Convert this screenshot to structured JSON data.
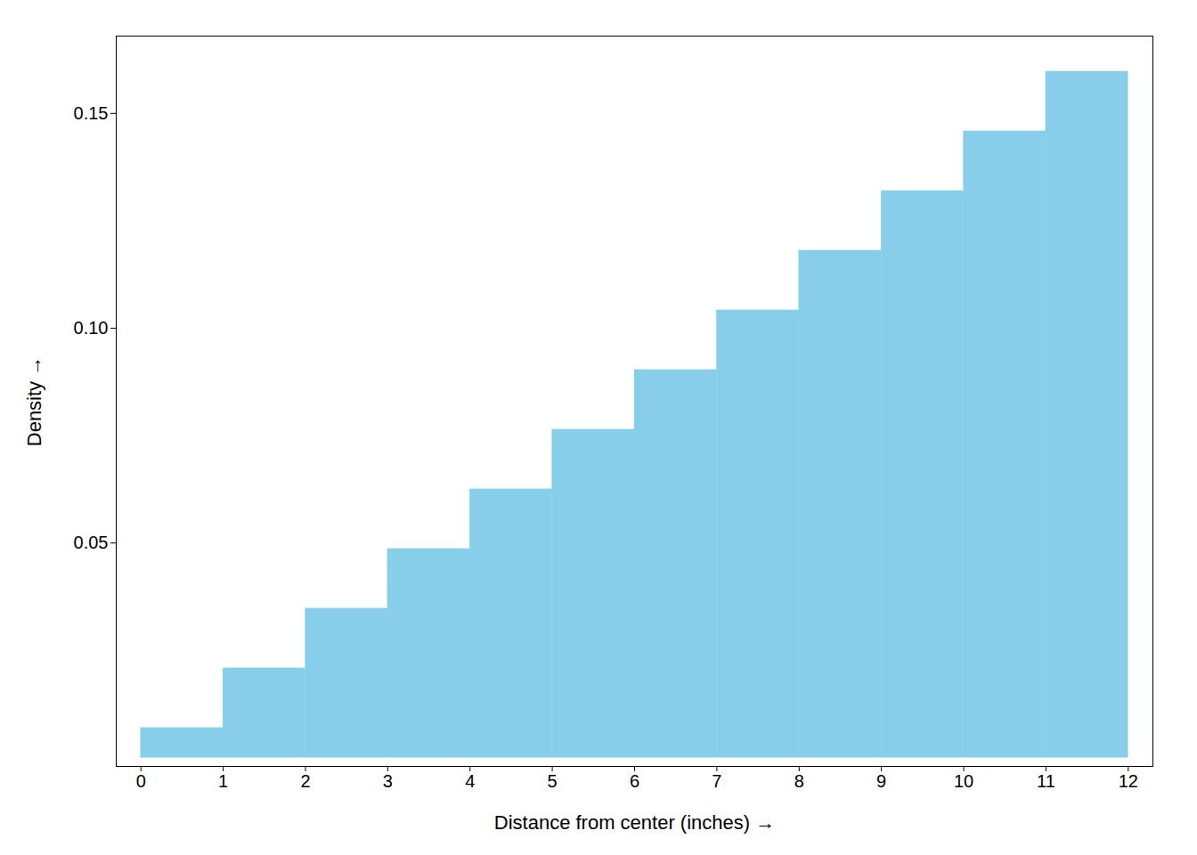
{
  "chart_data": {
    "type": "histogram",
    "bins": [
      0,
      1,
      2,
      3,
      4,
      5,
      6,
      7,
      8,
      9,
      10,
      11,
      12
    ],
    "values": [
      0.006944,
      0.020833,
      0.034722,
      0.048611,
      0.0625,
      0.076389,
      0.090278,
      0.104167,
      0.118056,
      0.131944,
      0.145833,
      0.159722
    ],
    "color": "#87CEEB",
    "xlabel": "Distance from center (inches)",
    "ylabel": "Density",
    "xlim": [
      -0.3,
      12.3
    ],
    "ylim": [
      -0.002,
      0.168
    ],
    "xticks": [
      0,
      1,
      2,
      3,
      4,
      5,
      6,
      7,
      8,
      9,
      10,
      11,
      12
    ],
    "yticks": [
      0.05,
      {
        "value": 0.1,
        "label": "0.10"
      },
      0.15
    ],
    "grid": false
  }
}
